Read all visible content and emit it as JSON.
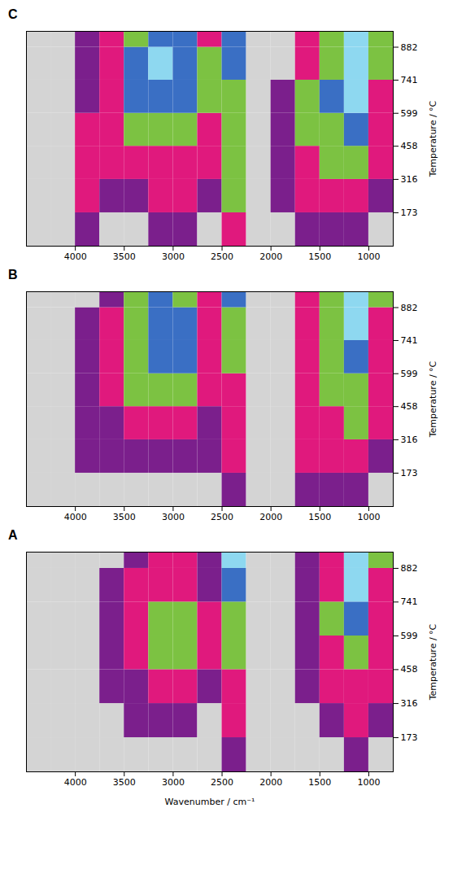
{
  "chart_data": [
    {
      "type": "heatmap",
      "title": "C",
      "ylabel": "Temperature / °C",
      "xlim": [
        4500,
        750
      ],
      "xticks": [
        4000,
        3500,
        3000,
        2500,
        2000,
        1500,
        1000
      ],
      "ylim": [
        30,
        950
      ],
      "yticks": [
        173,
        316,
        458,
        599,
        741,
        882
      ],
      "wavenumber_edges": [
        4500,
        4250,
        4000,
        3750,
        3500,
        3250,
        3000,
        2750,
        2500,
        2250,
        2000,
        1750,
        1500,
        1250,
        1000,
        750
      ],
      "temperature_edges": [
        30,
        173,
        316,
        458,
        599,
        741,
        882,
        950
      ],
      "levels": [
        0.15,
        0.3,
        0.5,
        0.7,
        0.85
      ],
      "colors": [
        "#d4d4d4",
        "#7b1f8c",
        "#e0197d",
        "#7cc242",
        "#3a6fc4",
        "#8ed8f0"
      ],
      "intensity": [
        [
          0,
          0,
          0.2,
          0.1,
          0.1,
          0.15,
          0.15,
          0.1,
          0.35,
          0.05,
          0.1,
          0.2,
          0.2,
          0.2,
          0.1
        ],
        [
          0,
          0,
          0.3,
          0.2,
          0.25,
          0.3,
          0.3,
          0.2,
          0.5,
          0.05,
          0.15,
          0.35,
          0.4,
          0.4,
          0.25
        ],
        [
          0,
          0,
          0.3,
          0.3,
          0.4,
          0.45,
          0.45,
          0.3,
          0.55,
          0.1,
          0.15,
          0.45,
          0.55,
          0.6,
          0.35
        ],
        [
          0,
          0,
          0.3,
          0.35,
          0.55,
          0.65,
          0.6,
          0.4,
          0.6,
          0.1,
          0.15,
          0.5,
          0.65,
          0.75,
          0.4
        ],
        [
          0,
          0,
          0.25,
          0.4,
          0.7,
          0.8,
          0.75,
          0.5,
          0.65,
          0.1,
          0.15,
          0.5,
          0.7,
          0.9,
          0.45
        ],
        [
          0,
          0,
          0.2,
          0.35,
          0.75,
          0.85,
          0.8,
          0.5,
          0.7,
          0.1,
          0.1,
          0.45,
          0.65,
          0.95,
          0.5
        ],
        [
          0,
          0,
          0.15,
          0.3,
          0.65,
          0.75,
          0.7,
          0.45,
          0.75,
          0.1,
          0.1,
          0.4,
          0.6,
          1.0,
          0.55
        ]
      ]
    },
    {
      "type": "heatmap",
      "title": "B",
      "ylabel": "Temperature / °C",
      "xlim": [
        4500,
        750
      ],
      "xticks": [
        4000,
        3500,
        3000,
        2500,
        2000,
        1500,
        1000
      ],
      "ylim": [
        30,
        950
      ],
      "yticks": [
        173,
        316,
        458,
        599,
        741,
        882
      ],
      "wavenumber_edges": [
        4500,
        4250,
        4000,
        3750,
        3500,
        3250,
        3000,
        2750,
        2500,
        2250,
        2000,
        1750,
        1500,
        1250,
        1000,
        750
      ],
      "temperature_edges": [
        30,
        173,
        316,
        458,
        599,
        741,
        882,
        950
      ],
      "levels": [
        0.15,
        0.3,
        0.5,
        0.7,
        0.85
      ],
      "colors": [
        "#d4d4d4",
        "#7b1f8c",
        "#e0197d",
        "#7cc242",
        "#3a6fc4",
        "#8ed8f0"
      ],
      "intensity": [
        [
          0,
          0,
          0.1,
          0.05,
          0.1,
          0.1,
          0.1,
          0.05,
          0.2,
          0.05,
          0.05,
          0.15,
          0.15,
          0.15,
          0.1
        ],
        [
          0,
          0,
          0.2,
          0.15,
          0.2,
          0.25,
          0.25,
          0.15,
          0.35,
          0.05,
          0.1,
          0.3,
          0.35,
          0.35,
          0.2
        ],
        [
          0,
          0,
          0.25,
          0.25,
          0.35,
          0.4,
          0.4,
          0.25,
          0.4,
          0.1,
          0.1,
          0.4,
          0.45,
          0.5,
          0.3
        ],
        [
          0,
          0,
          0.25,
          0.3,
          0.5,
          0.6,
          0.55,
          0.35,
          0.45,
          0.1,
          0.1,
          0.45,
          0.55,
          0.65,
          0.35
        ],
        [
          0,
          0,
          0.2,
          0.35,
          0.6,
          0.75,
          0.7,
          0.45,
          0.5,
          0.1,
          0.1,
          0.45,
          0.6,
          0.8,
          0.4
        ],
        [
          0,
          0,
          0.15,
          0.3,
          0.65,
          0.8,
          0.7,
          0.4,
          0.6,
          0.1,
          0.1,
          0.4,
          0.55,
          0.85,
          0.45
        ],
        [
          0,
          0,
          0.1,
          0.25,
          0.55,
          0.7,
          0.6,
          0.35,
          0.7,
          0.1,
          0.05,
          0.3,
          0.5,
          0.9,
          0.5
        ]
      ]
    },
    {
      "type": "heatmap",
      "title": "A",
      "xlabel": "Wavenumber / cm⁻¹",
      "ylabel": "Temperature / °C",
      "xlim": [
        4500,
        750
      ],
      "xticks": [
        4000,
        3500,
        3000,
        2500,
        2000,
        1500,
        1000
      ],
      "ylim": [
        30,
        950
      ],
      "yticks": [
        173,
        316,
        458,
        599,
        741,
        882
      ],
      "wavenumber_edges": [
        4500,
        4250,
        4000,
        3750,
        3500,
        3250,
        3000,
        2750,
        2500,
        2250,
        2000,
        1750,
        1500,
        1250,
        1000,
        750
      ],
      "temperature_edges": [
        30,
        173,
        316,
        458,
        599,
        741,
        882,
        950
      ],
      "levels": [
        0.15,
        0.3,
        0.5,
        0.7,
        0.85
      ],
      "colors": [
        "#d4d4d4",
        "#7b1f8c",
        "#e0197d",
        "#7cc242",
        "#3a6fc4",
        "#8ed8f0"
      ],
      "intensity": [
        [
          0,
          0,
          0,
          0.05,
          0.05,
          0.1,
          0.1,
          0.05,
          0.2,
          0.05,
          0,
          0.05,
          0.1,
          0.15,
          0.1
        ],
        [
          0,
          0,
          0.05,
          0.1,
          0.15,
          0.2,
          0.2,
          0.1,
          0.3,
          0.05,
          0.05,
          0.1,
          0.2,
          0.3,
          0.2
        ],
        [
          0,
          0,
          0.1,
          0.15,
          0.25,
          0.35,
          0.35,
          0.2,
          0.4,
          0.1,
          0.05,
          0.15,
          0.3,
          0.45,
          0.3
        ],
        [
          0,
          0,
          0.1,
          0.2,
          0.35,
          0.5,
          0.5,
          0.3,
          0.5,
          0.1,
          0.05,
          0.2,
          0.4,
          0.6,
          0.35
        ],
        [
          0,
          0,
          0.1,
          0.2,
          0.4,
          0.55,
          0.55,
          0.35,
          0.6,
          0.1,
          0.05,
          0.25,
          0.5,
          0.8,
          0.4
        ],
        [
          0,
          0,
          0.05,
          0.15,
          0.3,
          0.45,
          0.4,
          0.25,
          0.75,
          0.1,
          0.05,
          0.2,
          0.45,
          0.9,
          0.45
        ],
        [
          0,
          0,
          0.05,
          0.1,
          0.2,
          0.3,
          0.3,
          0.2,
          0.9,
          0.1,
          0.05,
          0.15,
          0.4,
          0.95,
          0.5
        ]
      ]
    }
  ]
}
